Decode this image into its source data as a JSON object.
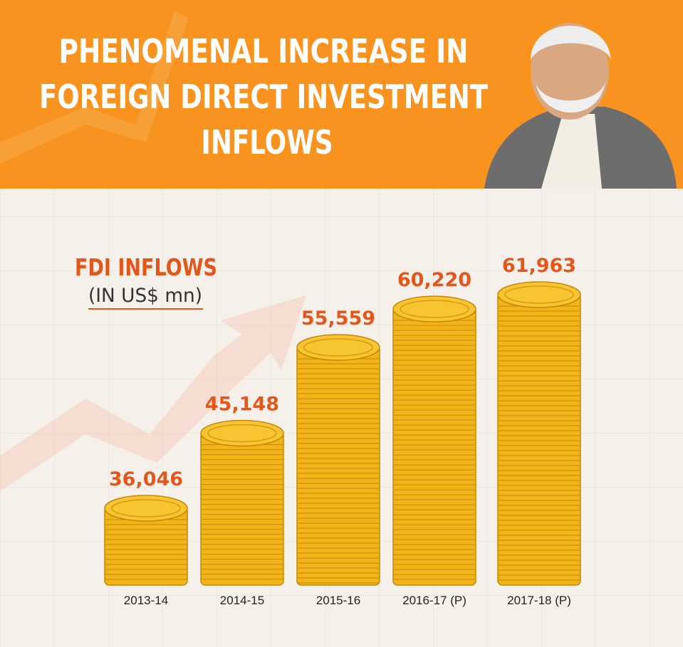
{
  "chart_data": {
    "type": "bar",
    "title": [
      "PHENOMENAL INCREASE IN",
      "FOREIGN DIRECT INVESTMENT",
      "INFLOWS"
    ],
    "subtitle": "FDI INFLOWS",
    "unit_label": "(IN US$ mn)",
    "categories": [
      "2013-14",
      "2014-15",
      "2015-16",
      "2016-17 (P)",
      "2017-18 (P)"
    ],
    "values": [
      36046,
      45148,
      55559,
      60220,
      61963
    ],
    "value_labels": [
      "36,046",
      "45,148",
      "55,559",
      "60,220",
      "61,963"
    ],
    "color": "#f2b519"
  }
}
